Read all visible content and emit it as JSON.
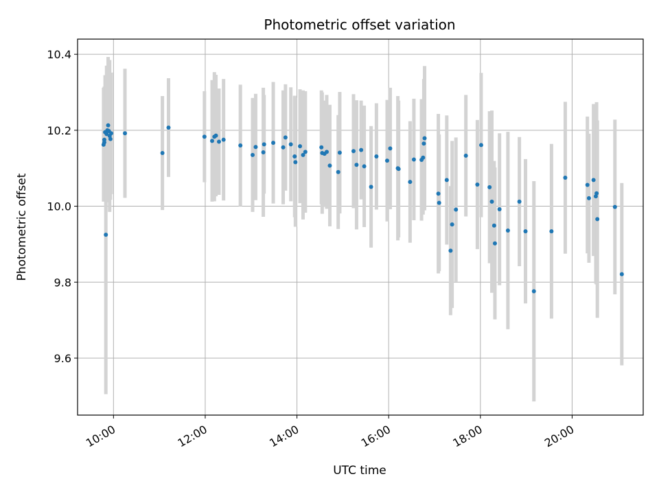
{
  "chart_data": {
    "type": "scatter",
    "title": "Photometric offset variation",
    "xlabel": "UTC time",
    "ylabel": "Photometric offset",
    "x_ticks": [
      "10:00",
      "12:00",
      "14:00",
      "16:00",
      "18:00",
      "20:00"
    ],
    "y_ticks": [
      "9.6",
      "9.8",
      "10.0",
      "10.2",
      "10.4"
    ],
    "xlim": [
      "09:13",
      "21:33"
    ],
    "ylim": [
      9.45,
      10.44
    ],
    "grid": true,
    "colors": {
      "point": "#1f77b4",
      "errorbar": "#d3d3d3",
      "grid": "#b0b0b0"
    },
    "points": [
      {
        "t": "09:47",
        "y": 10.162,
        "err": 0.15
      },
      {
        "t": "09:48",
        "y": 10.168,
        "err": 0.14
      },
      {
        "t": "09:48",
        "y": 10.175,
        "err": 0.14
      },
      {
        "t": "09:49",
        "y": 10.195,
        "err": 0.15
      },
      {
        "t": "09:50",
        "y": 9.925,
        "err": 0.42
      },
      {
        "t": "09:51",
        "y": 10.19,
        "err": 0.18
      },
      {
        "t": "09:52",
        "y": 10.2,
        "err": 0.17
      },
      {
        "t": "09:53",
        "y": 10.213,
        "err": 0.18
      },
      {
        "t": "09:54",
        "y": 10.198,
        "err": 0.17
      },
      {
        "t": "09:55",
        "y": 10.185,
        "err": 0.2
      },
      {
        "t": "09:56",
        "y": 10.177,
        "err": 0.16
      },
      {
        "t": "09:57",
        "y": 10.192,
        "err": 0.16
      },
      {
        "t": "10:15",
        "y": 10.192,
        "err": 0.17
      },
      {
        "t": "11:04",
        "y": 10.14,
        "err": 0.15
      },
      {
        "t": "11:12",
        "y": 10.207,
        "err": 0.13
      },
      {
        "t": "11:59",
        "y": 10.183,
        "err": 0.12
      },
      {
        "t": "12:09",
        "y": 10.172,
        "err": 0.16
      },
      {
        "t": "12:12",
        "y": 10.183,
        "err": 0.17
      },
      {
        "t": "12:14",
        "y": 10.186,
        "err": 0.16
      },
      {
        "t": "12:18",
        "y": 10.17,
        "err": 0.14
      },
      {
        "t": "12:24",
        "y": 10.175,
        "err": 0.16
      },
      {
        "t": "12:46",
        "y": 10.16,
        "err": 0.16
      },
      {
        "t": "13:02",
        "y": 10.135,
        "err": 0.15
      },
      {
        "t": "13:06",
        "y": 10.156,
        "err": 0.14
      },
      {
        "t": "13:16",
        "y": 10.142,
        "err": 0.17
      },
      {
        "t": "13:17",
        "y": 10.163,
        "err": 0.13
      },
      {
        "t": "13:29",
        "y": 10.167,
        "err": 0.16
      },
      {
        "t": "13:42",
        "y": 10.155,
        "err": 0.15
      },
      {
        "t": "13:45",
        "y": 10.181,
        "err": 0.14
      },
      {
        "t": "13:52",
        "y": 10.163,
        "err": 0.15
      },
      {
        "t": "13:57",
        "y": 10.131,
        "err": 0.16
      },
      {
        "t": "13:58",
        "y": 10.116,
        "err": 0.17
      },
      {
        "t": "14:04",
        "y": 10.158,
        "err": 0.15
      },
      {
        "t": "14:08",
        "y": 10.135,
        "err": 0.17
      },
      {
        "t": "14:11",
        "y": 10.143,
        "err": 0.16
      },
      {
        "t": "14:32",
        "y": 10.155,
        "err": 0.15
      },
      {
        "t": "14:33",
        "y": 10.14,
        "err": 0.16
      },
      {
        "t": "14:36",
        "y": 10.138,
        "err": 0.14
      },
      {
        "t": "14:39",
        "y": 10.143,
        "err": 0.15
      },
      {
        "t": "14:43",
        "y": 10.107,
        "err": 0.16
      },
      {
        "t": "14:54",
        "y": 10.09,
        "err": 0.15
      },
      {
        "t": "14:56",
        "y": 10.141,
        "err": 0.16
      },
      {
        "t": "15:14",
        "y": 10.145,
        "err": 0.15
      },
      {
        "t": "15:18",
        "y": 10.109,
        "err": 0.17
      },
      {
        "t": "15:24",
        "y": 10.148,
        "err": 0.13
      },
      {
        "t": "15:28",
        "y": 10.105,
        "err": 0.16
      },
      {
        "t": "15:37",
        "y": 10.051,
        "err": 0.16
      },
      {
        "t": "15:44",
        "y": 10.131,
        "err": 0.14
      },
      {
        "t": "15:58",
        "y": 10.12,
        "err": 0.16
      },
      {
        "t": "16:02",
        "y": 10.152,
        "err": 0.16
      },
      {
        "t": "16:12",
        "y": 10.1,
        "err": 0.19
      },
      {
        "t": "16:13",
        "y": 10.098,
        "err": 0.18
      },
      {
        "t": "16:28",
        "y": 10.064,
        "err": 0.16
      },
      {
        "t": "16:33",
        "y": 10.123,
        "err": 0.16
      },
      {
        "t": "16:43",
        "y": 10.122,
        "err": 0.16
      },
      {
        "t": "16:45",
        "y": 10.128,
        "err": 0.15
      },
      {
        "t": "16:46",
        "y": 10.165,
        "err": 0.17
      },
      {
        "t": "16:47",
        "y": 10.179,
        "err": 0.19
      },
      {
        "t": "17:05",
        "y": 10.033,
        "err": 0.21
      },
      {
        "t": "17:06",
        "y": 10.009,
        "err": 0.18
      },
      {
        "t": "17:16",
        "y": 10.069,
        "err": 0.17
      },
      {
        "t": "17:21",
        "y": 9.883,
        "err": 0.17
      },
      {
        "t": "17:23",
        "y": 9.952,
        "err": 0.22
      },
      {
        "t": "17:28",
        "y": 9.991,
        "err": 0.19
      },
      {
        "t": "17:41",
        "y": 10.133,
        "err": 0.16
      },
      {
        "t": "17:56",
        "y": 10.057,
        "err": 0.17
      },
      {
        "t": "18:01",
        "y": 10.161,
        "err": 0.19
      },
      {
        "t": "18:12",
        "y": 10.05,
        "err": 0.2
      },
      {
        "t": "18:15",
        "y": 10.012,
        "err": 0.24
      },
      {
        "t": "18:18",
        "y": 9.949,
        "err": 0.17
      },
      {
        "t": "18:19",
        "y": 9.902,
        "err": 0.2
      },
      {
        "t": "18:25",
        "y": 9.992,
        "err": 0.2
      },
      {
        "t": "18:36",
        "y": 9.936,
        "err": 0.26
      },
      {
        "t": "18:51",
        "y": 10.012,
        "err": 0.17
      },
      {
        "t": "18:59",
        "y": 9.934,
        "err": 0.19
      },
      {
        "t": "19:10",
        "y": 9.776,
        "err": 0.29
      },
      {
        "t": "19:33",
        "y": 9.934,
        "err": 0.23
      },
      {
        "t": "19:51",
        "y": 10.075,
        "err": 0.2
      },
      {
        "t": "20:20",
        "y": 10.056,
        "err": 0.18
      },
      {
        "t": "20:22",
        "y": 10.021,
        "err": 0.17
      },
      {
        "t": "20:28",
        "y": 10.069,
        "err": 0.2
      },
      {
        "t": "20:31",
        "y": 10.026,
        "err": 0.23
      },
      {
        "t": "20:32",
        "y": 10.034,
        "err": 0.24
      },
      {
        "t": "20:33",
        "y": 9.966,
        "err": 0.26
      },
      {
        "t": "20:56",
        "y": 9.998,
        "err": 0.23
      },
      {
        "t": "21:05",
        "y": 9.821,
        "err": 0.24
      }
    ]
  }
}
